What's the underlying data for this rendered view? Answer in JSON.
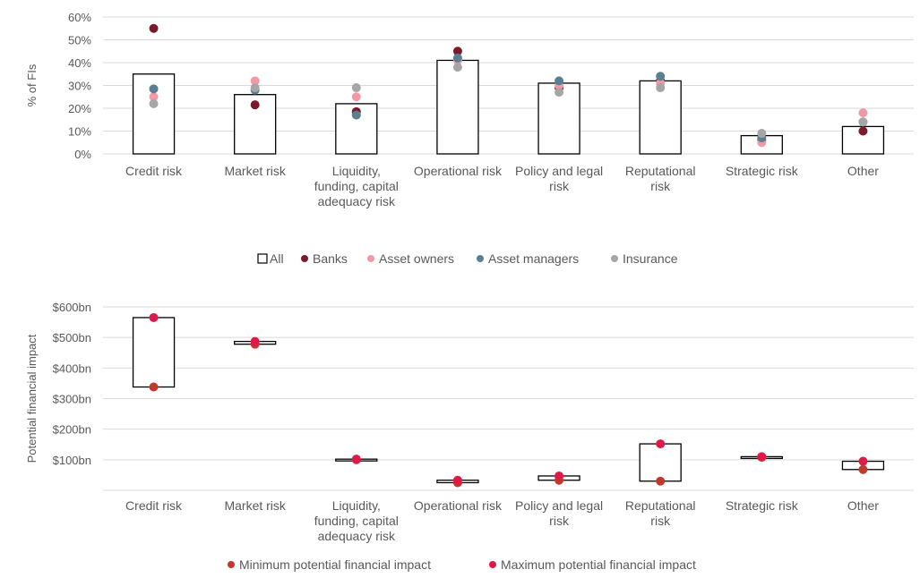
{
  "chart_data": [
    {
      "type": "bar",
      "ylabel": "% of FIs",
      "ylim": [
        0,
        60
      ],
      "yticks": [
        0,
        10,
        20,
        30,
        40,
        50,
        60
      ],
      "ytick_labels": [
        "0%",
        "10%",
        "20%",
        "30%",
        "40%",
        "50%",
        "60%"
      ],
      "grid": true,
      "legend_position": "bottom",
      "categories": [
        [
          "Credit risk"
        ],
        [
          "Market risk"
        ],
        [
          "Liquidity,",
          "funding, capital",
          "adequacy risk"
        ],
        [
          "Operational risk"
        ],
        [
          "Policy and legal",
          "risk"
        ],
        [
          "Reputational",
          "risk"
        ],
        [
          "Strategic risk"
        ],
        [
          "Other"
        ]
      ],
      "series": [
        {
          "name": "All",
          "style": "bar",
          "color": "#000000",
          "values": [
            35,
            26,
            22,
            41,
            31,
            32,
            8,
            12
          ]
        },
        {
          "name": "Banks",
          "style": "dot",
          "color": "#7b1a2b",
          "values": [
            55,
            21.5,
            18.5,
            45,
            29,
            32,
            6,
            10
          ]
        },
        {
          "name": "Asset owners",
          "style": "dot",
          "color": "#f19aa6",
          "values": [
            25,
            32,
            25,
            41,
            30,
            31,
            5,
            18
          ]
        },
        {
          "name": "Asset managers",
          "style": "dot",
          "color": "#5a7f93",
          "values": [
            28.5,
            28,
            17,
            42,
            32,
            34,
            7,
            14
          ]
        },
        {
          "name": "Insurance",
          "style": "dot",
          "color": "#a6a6a6",
          "values": [
            22,
            29,
            29,
            38,
            27,
            29,
            9,
            14
          ]
        }
      ]
    },
    {
      "type": "bar",
      "ylabel": "Potential financial impact",
      "ylim": [
        0,
        600
      ],
      "yticks": [
        100,
        200,
        300,
        400,
        500,
        600
      ],
      "ytick_labels": [
        "$100bn",
        "$200bn",
        "$300bn",
        "$400bn",
        "$500bn",
        "$600bn"
      ],
      "grid": true,
      "legend_position": "bottom",
      "categories": [
        [
          "Credit risk"
        ],
        [
          "Market risk"
        ],
        [
          "Liquidity,",
          "funding, capital",
          "adequacy risk"
        ],
        [
          "Operational risk"
        ],
        [
          "Policy and legal",
          "risk"
        ],
        [
          "Reputational",
          "risk"
        ],
        [
          "Strategic risk"
        ],
        [
          "Other"
        ]
      ],
      "series": [
        {
          "name": "Minimum potential financial impact",
          "style": "dot",
          "color": "#c0392b",
          "values": [
            338,
            478,
            100,
            25,
            33,
            30,
            108,
            68
          ]
        },
        {
          "name": "Maximum potential financial impact",
          "style": "dot",
          "color": "#e0194a",
          "values": [
            565,
            487,
            102,
            33,
            47,
            152,
            110,
            95
          ]
        }
      ]
    }
  ]
}
